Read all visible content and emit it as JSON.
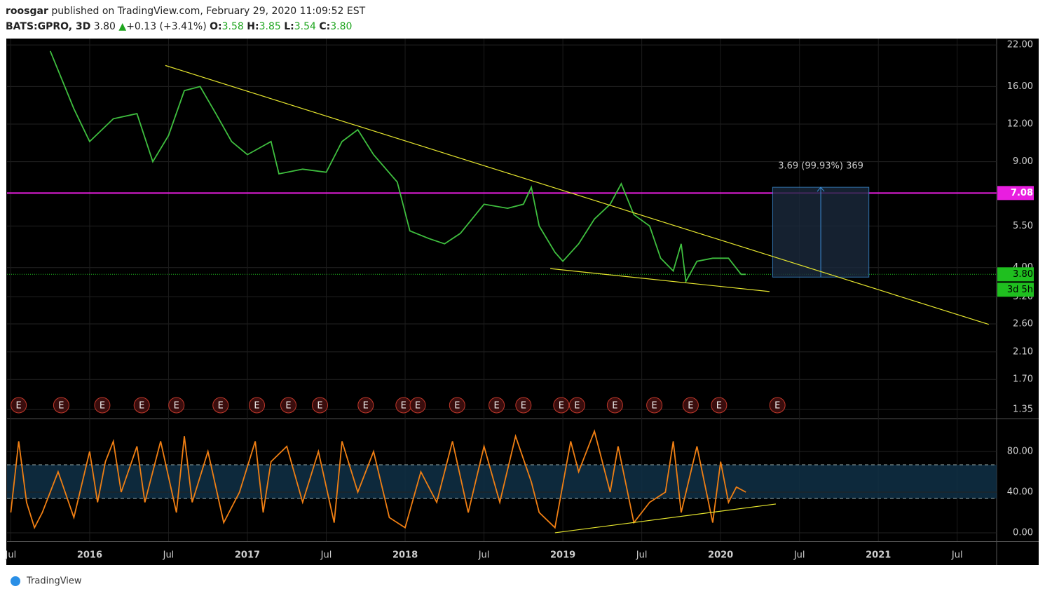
{
  "header": {
    "author": "roosgar",
    "published": "published on TradingView.com, February 29, 2020 11:09:52 EST",
    "symbol": "BATS:GPRO, 3D",
    "last": "3.80",
    "arrow": "▲",
    "change": "+0.13 (+3.41%)",
    "ohlc": [
      {
        "key": "O:",
        "value": "3.58"
      },
      {
        "key": "H:",
        "value": "3.85"
      },
      {
        "key": "L:",
        "value": "3.54"
      },
      {
        "key": "C:",
        "value": "3.80"
      }
    ]
  },
  "footer": "TradingView",
  "chart_data": [
    {
      "type": "line",
      "pane": "price",
      "log": true,
      "color": "#3fbf3f",
      "x": [
        2015.75,
        2015.9,
        2016.0,
        2016.15,
        2016.3,
        2016.4,
        2016.5,
        2016.6,
        2016.7,
        2016.8,
        2016.9,
        2017.0,
        2017.15,
        2017.2,
        2017.35,
        2017.5,
        2017.6,
        2017.7,
        2017.8,
        2017.95,
        2018.03,
        2018.15,
        2018.25,
        2018.35,
        2018.5,
        2018.65,
        2018.75,
        2018.8,
        2018.85,
        2018.95,
        2019.0,
        2019.1,
        2019.2,
        2019.3,
        2019.37,
        2019.45,
        2019.55,
        2019.62,
        2019.7,
        2019.75,
        2019.78,
        2019.85,
        2019.95,
        2020.05,
        2020.13,
        2020.16
      ],
      "values": [
        21,
        13.5,
        10.5,
        12.5,
        13,
        9.0,
        11,
        15.5,
        16,
        13,
        10.5,
        9.5,
        10.5,
        8.2,
        8.5,
        8.3,
        10.5,
        11.5,
        9.5,
        7.7,
        5.3,
        5.0,
        4.8,
        5.2,
        6.5,
        6.3,
        6.5,
        7.4,
        5.5,
        4.5,
        4.2,
        4.8,
        5.8,
        6.5,
        7.6,
        6.0,
        5.5,
        4.3,
        3.9,
        4.8,
        3.6,
        4.2,
        4.3,
        4.3,
        3.8,
        3.8
      ],
      "xlim": [
        2015.476,
        2021.75
      ],
      "ylim": [
        1.26,
        23.1
      ],
      "xticks": [
        {
          "value": 2015.5,
          "label": "Jul"
        },
        2016,
        {
          "value": 2016.5,
          "label": "Jul"
        },
        2017,
        {
          "value": 2017.5,
          "label": "Jul"
        },
        2018,
        {
          "value": 2018.5,
          "label": "Jul"
        },
        2019,
        {
          "value": 2019.5,
          "label": "Jul"
        },
        2020,
        {
          "value": 2020.5,
          "label": "Jul"
        },
        2021,
        {
          "value": 2021.5,
          "label": "Jul"
        }
      ],
      "yticks": [
        {
          "value": 22,
          "label": "22.00"
        },
        {
          "value": 16,
          "label": "16.00"
        },
        {
          "value": 12,
          "label": "12.00"
        },
        {
          "value": 9,
          "label": "9.00"
        },
        {
          "value": 5.5,
          "label": "5.50"
        },
        {
          "value": 4,
          "label": "4.00"
        },
        {
          "value": 3.2,
          "label": "3.20"
        },
        {
          "value": 2.6,
          "label": "2.60"
        },
        {
          "value": 2.1,
          "label": "2.10"
        },
        {
          "value": 1.7,
          "label": "1.70"
        },
        {
          "value": 1.35,
          "label": "1.35"
        }
      ],
      "hline": {
        "value": 7.08,
        "label": "7.08",
        "color": "#e91ee0"
      },
      "last": {
        "value": 3.8,
        "label": "3.80",
        "countdown": "3d 5h",
        "color": "#1fbf1f"
      },
      "trendlines": [
        {
          "x": [
            2016.48,
            2021.7
          ],
          "y": [
            18.8,
            2.59
          ],
          "color": "#e6e62e"
        },
        {
          "x": [
            2018.92,
            2020.31
          ],
          "y": [
            3.97,
            3.33
          ],
          "color": "#e6e62e"
        }
      ],
      "measure": {
        "label": "3.69 (99.93%) 369",
        "x": [
          2020.33,
          2020.94
        ],
        "y": [
          3.72,
          7.4
        ]
      },
      "earnings": {
        "label": "E",
        "x": [
          2015.55,
          2015.82,
          2016.08,
          2016.33,
          2016.55,
          2016.83,
          2017.06,
          2017.26,
          2017.46,
          2017.75,
          2017.99,
          2018.08,
          2018.33,
          2018.58,
          2018.75,
          2018.99,
          2019.09,
          2019.33,
          2019.58,
          2019.81,
          2019.99,
          2020.36
        ]
      }
    },
    {
      "type": "line",
      "pane": "osc",
      "color": "#f07f13",
      "x": [
        2015.5,
        2015.55,
        2015.6,
        2015.65,
        2015.7,
        2015.8,
        2015.9,
        2016.0,
        2016.05,
        2016.1,
        2016.15,
        2016.2,
        2016.3,
        2016.35,
        2016.45,
        2016.55,
        2016.6,
        2016.65,
        2016.75,
        2016.85,
        2016.95,
        2017.05,
        2017.1,
        2017.15,
        2017.25,
        2017.35,
        2017.45,
        2017.55,
        2017.6,
        2017.7,
        2017.8,
        2017.9,
        2018.0,
        2018.1,
        2018.2,
        2018.3,
        2018.4,
        2018.5,
        2018.6,
        2018.7,
        2018.8,
        2018.85,
        2018.95,
        2019.05,
        2019.1,
        2019.2,
        2019.3,
        2019.35,
        2019.45,
        2019.55,
        2019.65,
        2019.7,
        2019.75,
        2019.85,
        2019.95,
        2020.0,
        2020.05,
        2020.1,
        2020.16
      ],
      "values": [
        20,
        90,
        30,
        5,
        20,
        60,
        15,
        80,
        30,
        70,
        90,
        40,
        85,
        30,
        90,
        20,
        95,
        30,
        80,
        10,
        40,
        90,
        20,
        70,
        85,
        30,
        80,
        10,
        90,
        40,
        80,
        15,
        5,
        60,
        30,
        90,
        20,
        85,
        30,
        95,
        50,
        20,
        5,
        90,
        60,
        100,
        40,
        85,
        10,
        30,
        40,
        90,
        20,
        85,
        10,
        70,
        30,
        45,
        40
      ],
      "xlim": [
        2015.476,
        2021.75
      ],
      "ylim": [
        -8.3,
        111.7
      ],
      "yticks": [
        {
          "value": 80,
          "label": "80.00"
        },
        {
          "value": 40,
          "label": "40.00"
        },
        {
          "value": 0,
          "label": "0.00"
        }
      ],
      "band": [
        33.8,
        66.9
      ],
      "trendlines": [
        {
          "x": [
            2018.95,
            2020.35
          ],
          "y": [
            0,
            28.3
          ],
          "color": "#e6e62e"
        }
      ]
    }
  ]
}
